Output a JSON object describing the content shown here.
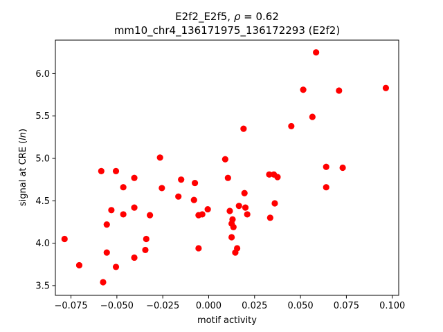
{
  "chart_data": {
    "type": "scatter",
    "title_line1_prefix": "E2f2_E2f5, ",
    "title_line1_rho": "ρ",
    "title_line1_suffix": " = 0.62",
    "title_line2": "mm10_chr4_136171975_136172293 (E2f2)",
    "xlabel": "motif activity",
    "ylabel_prefix": "signal at CRE (",
    "ylabel_italic": "ln",
    "ylabel_suffix": ")",
    "xlim": [
      -0.0835,
      0.1035
    ],
    "ylim": [
      3.385,
      6.395
    ],
    "xticks": [
      -0.075,
      -0.05,
      -0.025,
      0.0,
      0.025,
      0.05,
      0.075,
      0.1
    ],
    "xtick_labels": [
      "−0.075",
      "−0.050",
      "−0.025",
      "0.000",
      "0.025",
      "0.050",
      "0.075",
      "0.100"
    ],
    "yticks": [
      3.5,
      4.0,
      4.5,
      5.0,
      5.5,
      6.0
    ],
    "ytick_labels": [
      "3.5",
      "4.0",
      "4.5",
      "5.0",
      "5.5",
      "6.0"
    ],
    "grid": false,
    "marker_color": "#ff0000",
    "points": [
      {
        "x": -0.0785,
        "y": 4.05
      },
      {
        "x": -0.0705,
        "y": 3.74
      },
      {
        "x": -0.0585,
        "y": 4.85
      },
      {
        "x": -0.0575,
        "y": 3.54
      },
      {
        "x": -0.0555,
        "y": 4.22
      },
      {
        "x": -0.0555,
        "y": 3.89
      },
      {
        "x": -0.053,
        "y": 4.39
      },
      {
        "x": -0.0505,
        "y": 4.85
      },
      {
        "x": -0.0505,
        "y": 3.72
      },
      {
        "x": -0.0465,
        "y": 4.66
      },
      {
        "x": -0.0465,
        "y": 4.34
      },
      {
        "x": -0.0405,
        "y": 4.77
      },
      {
        "x": -0.0405,
        "y": 4.42
      },
      {
        "x": -0.0405,
        "y": 3.83
      },
      {
        "x": -0.0345,
        "y": 3.92
      },
      {
        "x": -0.034,
        "y": 4.05
      },
      {
        "x": -0.032,
        "y": 4.33
      },
      {
        "x": -0.0265,
        "y": 5.01
      },
      {
        "x": -0.0255,
        "y": 4.65
      },
      {
        "x": -0.0165,
        "y": 4.55
      },
      {
        "x": -0.015,
        "y": 4.75
      },
      {
        "x": -0.008,
        "y": 4.51
      },
      {
        "x": -0.0075,
        "y": 4.71
      },
      {
        "x": -0.0055,
        "y": 4.33
      },
      {
        "x": -0.0055,
        "y": 3.94
      },
      {
        "x": -0.0035,
        "y": 4.34
      },
      {
        "x": -0.0005,
        "y": 4.4
      },
      {
        "x": 0.009,
        "y": 4.99
      },
      {
        "x": 0.0105,
        "y": 4.77
      },
      {
        "x": 0.0115,
        "y": 4.38
      },
      {
        "x": 0.0125,
        "y": 4.23
      },
      {
        "x": 0.0125,
        "y": 4.07
      },
      {
        "x": 0.013,
        "y": 4.28
      },
      {
        "x": 0.0135,
        "y": 4.19
      },
      {
        "x": 0.0145,
        "y": 3.89
      },
      {
        "x": 0.0155,
        "y": 3.94
      },
      {
        "x": 0.0165,
        "y": 4.44
      },
      {
        "x": 0.019,
        "y": 5.35
      },
      {
        "x": 0.0195,
        "y": 4.59
      },
      {
        "x": 0.02,
        "y": 4.42
      },
      {
        "x": 0.021,
        "y": 4.34
      },
      {
        "x": 0.033,
        "y": 4.81
      },
      {
        "x": 0.0335,
        "y": 4.3
      },
      {
        "x": 0.0355,
        "y": 4.81
      },
      {
        "x": 0.036,
        "y": 4.47
      },
      {
        "x": 0.0375,
        "y": 4.78
      },
      {
        "x": 0.045,
        "y": 5.38
      },
      {
        "x": 0.0515,
        "y": 5.81
      },
      {
        "x": 0.0565,
        "y": 5.49
      },
      {
        "x": 0.0585,
        "y": 6.25
      },
      {
        "x": 0.064,
        "y": 4.9
      },
      {
        "x": 0.064,
        "y": 4.66
      },
      {
        "x": 0.071,
        "y": 5.8
      },
      {
        "x": 0.073,
        "y": 4.89
      },
      {
        "x": 0.0965,
        "y": 5.83
      }
    ]
  }
}
